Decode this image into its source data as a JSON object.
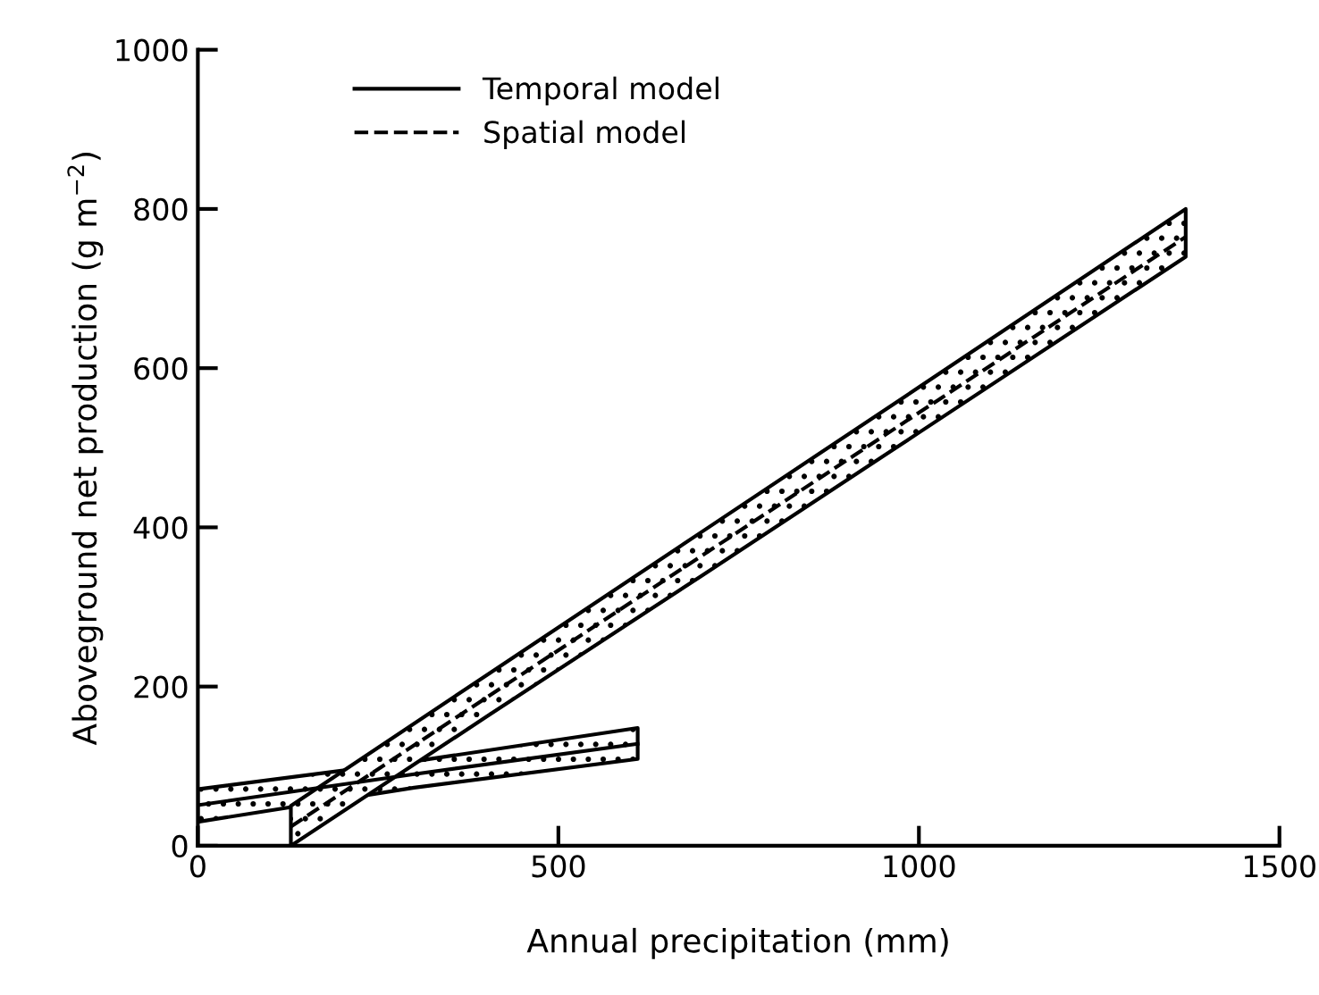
{
  "chart_data": {
    "type": "line",
    "xlabel": "Annual precipitation (mm)",
    "ylabel": "Aboveground net production (g m$^{−2}$)",
    "xlim": [
      0,
      1500
    ],
    "ylim": [
      0,
      1000
    ],
    "xticks": [
      0,
      500,
      1000,
      1500
    ],
    "yticks": [
      0,
      200,
      400,
      600,
      800,
      1000
    ],
    "grid": false,
    "legend": "top left",
    "marker": "none",
    "series": [
      {
        "name": "Temporal model",
        "color": "#000000",
        "line_style": "solid",
        "x": [
          0,
          300,
          610
        ],
        "values": [
          51,
          90,
          128
        ],
        "lower": [
          30,
          73,
          109
        ],
        "upper": [
          71,
          106,
          148
        ]
      },
      {
        "name": "Spatial model",
        "color": "#000000",
        "line_style": "dashed",
        "x": [
          129,
          400,
          700,
          1000,
          1370
        ],
        "values": [
          24,
          186,
          365,
          544,
          765
        ],
        "lower": [
          0,
          162,
          340,
          519,
          740
        ],
        "upper": [
          50,
          214,
          395,
          576,
          800
        ]
      }
    ]
  }
}
